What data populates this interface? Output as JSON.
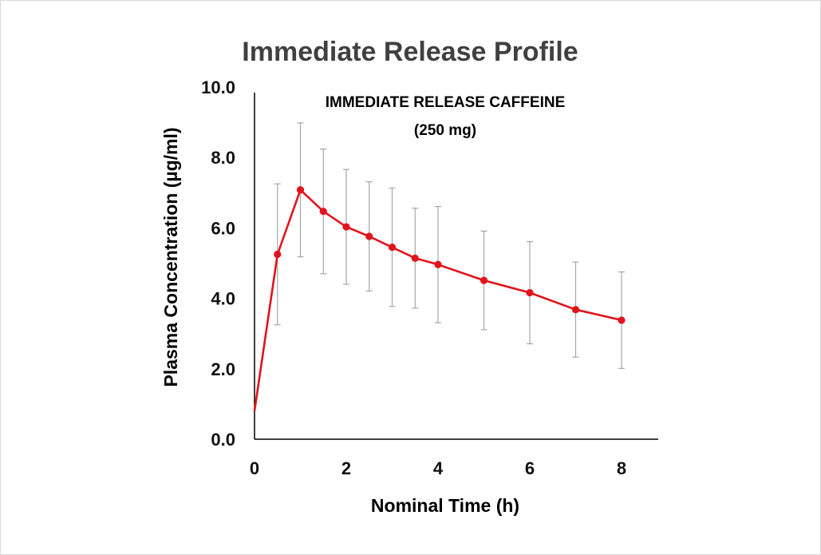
{
  "chart_data": {
    "type": "line",
    "title": "Immediate Release Profile",
    "annotation": [
      "IMMEDIATE RELEASE CAFFEINE",
      "(250 mg)"
    ],
    "xlabel": "Nominal Time (h)",
    "ylabel": "Plasma Concentration (µg/ml)",
    "xlim": [
      0,
      8.8
    ],
    "ylim": [
      0,
      10
    ],
    "x_ticks": [
      0,
      2,
      4,
      6,
      8
    ],
    "x_tick_labels": [
      "0",
      "2",
      "4",
      "6",
      "8"
    ],
    "y_ticks": [
      0,
      2,
      4,
      6,
      8,
      10
    ],
    "y_tick_labels": [
      "0.0",
      "2.0",
      "4.0",
      "6.0",
      "8.0",
      "10.0"
    ],
    "grid": false,
    "series": [
      {
        "color": "#e0141b",
        "error_bar_color": "#a6a6a6",
        "points": [
          {
            "x": 0,
            "y": 0.8,
            "err": null
          },
          {
            "x": 0.5,
            "y": 5.25,
            "err": 2.0
          },
          {
            "x": 1,
            "y": 7.08,
            "err": 1.9
          },
          {
            "x": 1.5,
            "y": 6.47,
            "err": 1.77
          },
          {
            "x": 2,
            "y": 6.03,
            "err": 1.63
          },
          {
            "x": 2.5,
            "y": 5.76,
            "err": 1.55
          },
          {
            "x": 3,
            "y": 5.45,
            "err": 1.68
          },
          {
            "x": 3.5,
            "y": 5.14,
            "err": 1.42
          },
          {
            "x": 4,
            "y": 4.96,
            "err": 1.65
          },
          {
            "x": 5,
            "y": 4.51,
            "err": 1.4
          },
          {
            "x": 6,
            "y": 4.16,
            "err": 1.45
          },
          {
            "x": 7,
            "y": 3.68,
            "err": 1.35
          },
          {
            "x": 8,
            "y": 3.38,
            "err": 1.37
          }
        ]
      }
    ]
  }
}
